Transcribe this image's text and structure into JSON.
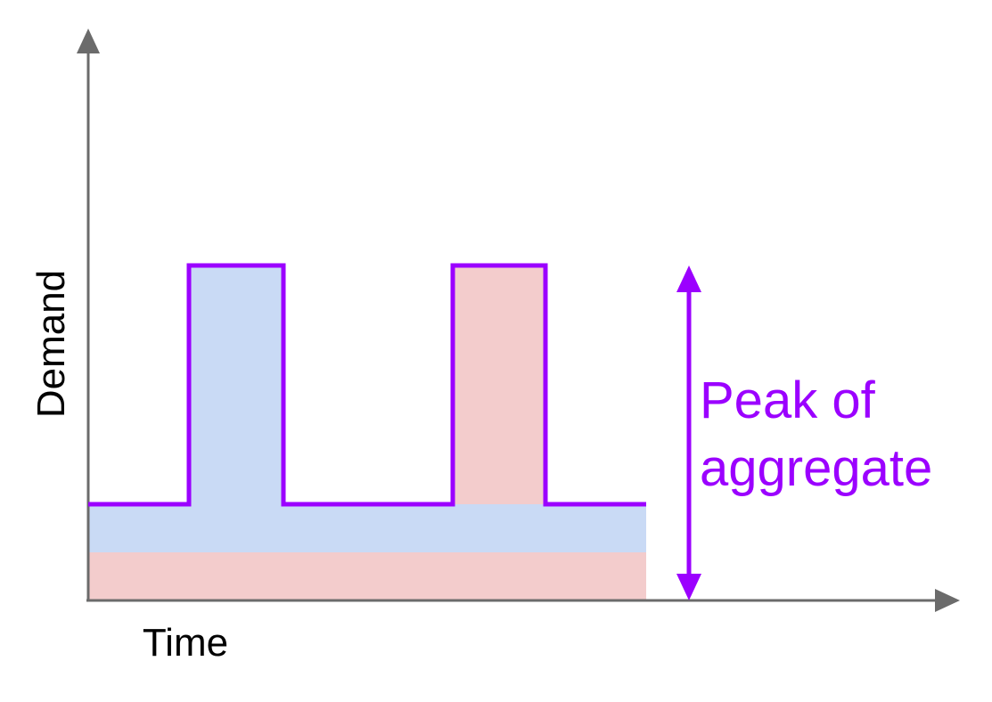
{
  "labels": {
    "y_axis": "Demand",
    "x_axis": "Time",
    "annotation_line1": "Peak of",
    "annotation_line2": "aggregate"
  },
  "colors": {
    "axis": "#6b6b6b",
    "aggregate_line": "#9b00ff",
    "series_a_fill": "#c9daf5",
    "series_b_fill": "#f3cccc",
    "annotation_text": "#9b00ff"
  }
}
